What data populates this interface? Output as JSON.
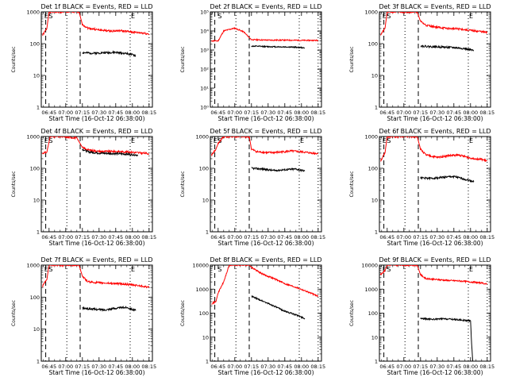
{
  "chart_data": [
    {
      "type": "line",
      "title": "Det 1f BLACK = Events, RED = LLD",
      "xlabel": "Start Time (16-Oct-12 06:38:00)",
      "ylabel": "Counts/sec",
      "yscale": "log",
      "ylim": [
        1,
        1000
      ],
      "xlim": [
        "06:38",
        "08:18"
      ],
      "yticks": [
        "1",
        "10",
        "100",
        "1000"
      ],
      "xticks": [
        "06:45",
        "07:00",
        "07:15",
        "07:30",
        "07:45",
        "08:00",
        "08:15"
      ],
      "markers": [
        "E",
        "S",
        "E"
      ],
      "series": [
        {
          "color": "#ff0000",
          "x": [
            "06:39",
            "06:43",
            "06:45",
            "06:50",
            "07:12",
            "07:15",
            "07:20",
            "07:30",
            "07:40",
            "07:50",
            "08:00",
            "08:10",
            "08:15"
          ],
          "y": [
            180,
            300,
            1000,
            1000,
            1000,
            400,
            310,
            270,
            250,
            255,
            230,
            215,
            200
          ]
        },
        {
          "color": "#000000",
          "x": [
            "07:15",
            "07:25",
            "07:35",
            "07:45",
            "07:55",
            "08:03"
          ],
          "y": [
            52,
            50,
            52,
            53,
            49,
            42
          ]
        }
      ]
    },
    {
      "type": "line",
      "title": "Det 2f BLACK = Events, RED = LLD",
      "xlabel": "Start Time (16-Oct-12 06:38:00)",
      "ylabel": "Counts/sec",
      "yscale": "log",
      "ylim": [
        1,
        100000
      ],
      "xlim": [
        "06:38",
        "08:18"
      ],
      "yticks": [
        "10^0",
        "10^1",
        "10^2",
        "10^3",
        "10^4",
        "10^5"
      ],
      "xticks": [
        "06:45",
        "07:00",
        "07:15",
        "07:30",
        "07:45",
        "08:00",
        "08:15"
      ],
      "markers": [
        "S"
      ],
      "series": [
        {
          "color": "#ff0000",
          "x": [
            "06:39",
            "06:45",
            "06:50",
            "06:55",
            "07:00",
            "07:08",
            "07:13",
            "07:15",
            "07:30",
            "07:45",
            "08:00",
            "08:15"
          ],
          "y": [
            3000,
            3000,
            10000,
            12000,
            14000,
            9000,
            4500,
            3500,
            3300,
            3300,
            3200,
            3200
          ]
        },
        {
          "color": "#000000",
          "x": [
            "07:15",
            "07:30",
            "07:45",
            "07:55",
            "08:03"
          ],
          "y": [
            1600,
            1500,
            1450,
            1400,
            1300
          ]
        }
      ]
    },
    {
      "type": "line",
      "title": "Det 3f BLACK = Events, RED = LLD",
      "xlabel": "Start Time (16-Oct-12 06:38:00)",
      "ylabel": "Counts/sec",
      "yscale": "log",
      "ylim": [
        1,
        1000
      ],
      "xlim": [
        "06:38",
        "08:18"
      ],
      "yticks": [
        "1",
        "10",
        "100",
        "1000"
      ],
      "xticks": [
        "06:45",
        "07:00",
        "07:15",
        "07:30",
        "07:45",
        "08:00",
        "08:15"
      ],
      "markers": [
        "E",
        "S",
        "E"
      ],
      "series": [
        {
          "color": "#ff0000",
          "x": [
            "06:39",
            "06:43",
            "06:45",
            "06:50",
            "07:12",
            "07:15",
            "07:20",
            "07:30",
            "07:40",
            "07:50",
            "08:00",
            "08:10",
            "08:15"
          ],
          "y": [
            190,
            300,
            1000,
            1000,
            1000,
            500,
            380,
            330,
            300,
            290,
            260,
            240,
            220
          ]
        },
        {
          "color": "#000000",
          "x": [
            "07:15",
            "07:25",
            "07:35",
            "07:45",
            "07:55",
            "08:03"
          ],
          "y": [
            85,
            80,
            78,
            75,
            70,
            60
          ]
        }
      ]
    },
    {
      "type": "line",
      "title": "Det 4f BLACK = Events, RED = LLD",
      "xlabel": "Start Time (16-Oct-12 06:38:00)",
      "ylabel": "Counts/sec",
      "yscale": "log",
      "ylim": [
        1,
        1000
      ],
      "xlim": [
        "06:38",
        "08:18"
      ],
      "yticks": [
        "1",
        "10",
        "100",
        "1000"
      ],
      "xticks": [
        "06:45",
        "07:00",
        "07:15",
        "07:30",
        "07:45",
        "08:00",
        "08:15"
      ],
      "markers": [
        "E",
        "S",
        "E"
      ],
      "series": [
        {
          "color": "#ff0000",
          "x": [
            "06:39",
            "06:43",
            "06:46",
            "06:55",
            "07:10",
            "07:13",
            "07:15",
            "07:20",
            "07:30",
            "07:45",
            "08:00",
            "08:15"
          ],
          "y": [
            300,
            320,
            1000,
            1000,
            900,
            600,
            450,
            380,
            340,
            340,
            320,
            290
          ]
        },
        {
          "color": "#000000",
          "x": [
            "07:15",
            "07:20",
            "07:30",
            "07:45",
            "07:55",
            "08:05"
          ],
          "y": [
            400,
            330,
            300,
            290,
            280,
            260
          ]
        }
      ]
    },
    {
      "type": "line",
      "title": "Det 5f BLACK = Events, RED = LLD",
      "xlabel": "Start Time (16-Oct-12 06:38:00)",
      "ylabel": "Counts/sec",
      "yscale": "log",
      "ylim": [
        1,
        1000
      ],
      "xlim": [
        "06:38",
        "08:18"
      ],
      "yticks": [
        "1",
        "10",
        "100",
        "1000"
      ],
      "xticks": [
        "06:45",
        "07:00",
        "07:15",
        "07:30",
        "07:45",
        "08:00",
        "08:15"
      ],
      "markers": [
        "E",
        "S",
        "E"
      ],
      "series": [
        {
          "color": "#ff0000",
          "x": [
            "06:39",
            "06:43",
            "06:45",
            "06:50",
            "07:13",
            "07:15",
            "07:20",
            "07:30",
            "07:40",
            "07:50",
            "08:00",
            "08:10",
            "08:15"
          ],
          "y": [
            260,
            400,
            600,
            1000,
            1000,
            400,
            330,
            310,
            320,
            350,
            330,
            300,
            290
          ]
        },
        {
          "color": "#000000",
          "x": [
            "07:15",
            "07:25",
            "07:35",
            "07:45",
            "07:55",
            "08:03"
          ],
          "y": [
            100,
            95,
            85,
            90,
            95,
            82
          ]
        }
      ]
    },
    {
      "type": "line",
      "title": "Det 6f BLACK = Events, RED = LLD",
      "xlabel": "Start Time (16-Oct-12 06:38:00)",
      "ylabel": "Counts/sec",
      "yscale": "log",
      "ylim": [
        1,
        1000
      ],
      "xlim": [
        "06:38",
        "08:18"
      ],
      "yticks": [
        "1",
        "10",
        "100",
        "1000"
      ],
      "xticks": [
        "06:45",
        "07:00",
        "07:15",
        "07:30",
        "07:45",
        "08:00",
        "08:15"
      ],
      "markers": [
        "E",
        "S",
        "E"
      ],
      "series": [
        {
          "color": "#ff0000",
          "x": [
            "06:39",
            "06:43",
            "06:45",
            "06:50",
            "07:12",
            "07:15",
            "07:20",
            "07:30",
            "07:40",
            "07:50",
            "08:00",
            "08:10",
            "08:15"
          ],
          "y": [
            170,
            300,
            1000,
            1000,
            1000,
            400,
            260,
            220,
            250,
            260,
            210,
            190,
            170
          ]
        },
        {
          "color": "#000000",
          "x": [
            "07:15",
            "07:25",
            "07:35",
            "07:45",
            "07:55",
            "08:03"
          ],
          "y": [
            50,
            48,
            52,
            55,
            45,
            38
          ]
        }
      ]
    },
    {
      "type": "line",
      "title": "Det 7f BLACK = Events, RED = LLD",
      "xlabel": "Start Time (16-Oct-12 06:38:00)",
      "ylabel": "Counts/sec",
      "yscale": "log",
      "ylim": [
        1,
        1000
      ],
      "xlim": [
        "06:38",
        "08:18"
      ],
      "yticks": [
        "1",
        "10",
        "100",
        "1000"
      ],
      "xticks": [
        "06:45",
        "07:00",
        "07:15",
        "07:30",
        "07:45",
        "08:00",
        "08:15"
      ],
      "markers": [
        "E",
        "S",
        "E"
      ],
      "series": [
        {
          "color": "#ff0000",
          "x": [
            "06:39",
            "06:43",
            "06:45",
            "06:50",
            "07:12",
            "07:15",
            "07:20",
            "07:30",
            "07:40",
            "07:50",
            "08:00",
            "08:10",
            "08:15"
          ],
          "y": [
            220,
            350,
            1000,
            1000,
            1000,
            450,
            300,
            280,
            270,
            260,
            240,
            220,
            200
          ]
        },
        {
          "color": "#000000",
          "x": [
            "07:15",
            "07:25",
            "07:35",
            "07:45",
            "07:55",
            "08:03"
          ],
          "y": [
            45,
            42,
            40,
            45,
            48,
            38
          ]
        }
      ]
    },
    {
      "type": "line",
      "title": "Det 8f BLACK = Events, RED = LLD",
      "xlabel": "Start Time (16-Oct-12 06:38:00)",
      "ylabel": "Counts/sec",
      "yscale": "log",
      "ylim": [
        1,
        10000
      ],
      "xlim": [
        "06:38",
        "08:18"
      ],
      "yticks": [
        "1",
        "10",
        "100",
        "1000",
        "10000"
      ],
      "xticks": [
        "06:45",
        "07:00",
        "07:15",
        "07:30",
        "07:45",
        "08:00",
        "08:15"
      ],
      "markers": [
        "S"
      ],
      "series": [
        {
          "color": "#ff0000",
          "x": [
            "06:39",
            "06:43",
            "06:45",
            "06:50",
            "06:55",
            "07:13",
            "07:15",
            "07:25",
            "07:35",
            "07:45",
            "07:55",
            "08:05",
            "08:15"
          ],
          "y": [
            250,
            300,
            700,
            2000,
            10000,
            10000,
            8000,
            4200,
            2800,
            1700,
            1200,
            800,
            500
          ]
        },
        {
          "color": "#000000",
          "x": [
            "07:15",
            "07:25",
            "07:35",
            "07:45",
            "07:55",
            "08:03"
          ],
          "y": [
            500,
            320,
            200,
            120,
            85,
            60
          ]
        }
      ]
    },
    {
      "type": "line",
      "title": "Det 9f BLACK = Events, RED = LLD",
      "xlabel": "Start Time (16-Oct-12 06:38:00)",
      "ylabel": "Counts/sec",
      "yscale": "log",
      "ylim": [
        1,
        10000
      ],
      "xlim": [
        "06:38",
        "08:18"
      ],
      "yticks": [
        "1",
        "10",
        "100",
        "1000",
        "10000"
      ],
      "xticks": [
        "06:45",
        "07:00",
        "07:15",
        "07:30",
        "07:45",
        "08:00",
        "08:15"
      ],
      "markers": [
        "E",
        "S",
        "E"
      ],
      "series": [
        {
          "color": "#ff0000",
          "x": [
            "06:39",
            "06:43",
            "06:45",
            "06:50",
            "07:12",
            "07:15",
            "07:20",
            "07:30",
            "07:40",
            "07:50",
            "08:00",
            "08:10",
            "08:15"
          ],
          "y": [
            4000,
            6000,
            10000,
            10000,
            10000,
            4000,
            2700,
            2500,
            2300,
            2200,
            2000,
            1800,
            1600
          ]
        },
        {
          "color": "#000000",
          "x": [
            "07:15",
            "07:25",
            "07:35",
            "07:45",
            "07:55",
            "08:00",
            "08:01",
            "08:02"
          ],
          "y": [
            60,
            55,
            58,
            55,
            50,
            48,
            5,
            1
          ]
        }
      ]
    }
  ]
}
